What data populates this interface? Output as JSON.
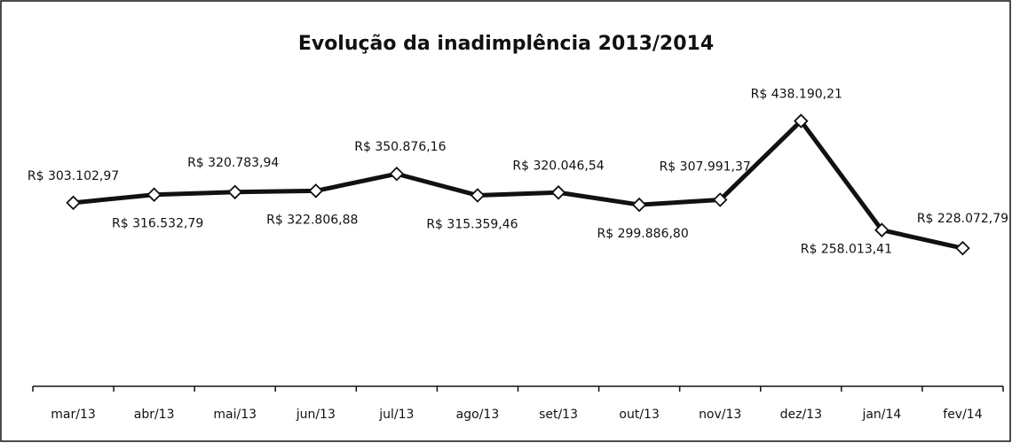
{
  "chart_data": {
    "type": "line",
    "title": "Evolução da inadimplência 2013/2014",
    "categories": [
      "mar/13",
      "abr/13",
      "mai/13",
      "jun/13",
      "jul/13",
      "ago/13",
      "set/13",
      "out/13",
      "nov/13",
      "dez/13",
      "jan/14",
      "fev/14"
    ],
    "series": [
      {
        "name": null,
        "color": "#111111",
        "values": [
          303102.97,
          316532.79,
          320783.94,
          322806.88,
          350876.16,
          315359.46,
          320046.54,
          299886.8,
          307991.37,
          438190.21,
          258013.41,
          228072.79
        ],
        "value_labels": [
          "R$ 303.102,97",
          "R$ 316.532,79",
          "R$ 320.783,94",
          "R$ 322.806,88",
          "R$ 350.876,16",
          "R$ 315.359,46",
          "R$ 320.046,54",
          "R$ 299.886,80",
          "R$ 307.991,37",
          "R$ 438.190,21",
          "R$ 258.013,41",
          "R$ 228.072,79"
        ]
      }
    ],
    "ylim": [
      0,
      600000
    ]
  }
}
